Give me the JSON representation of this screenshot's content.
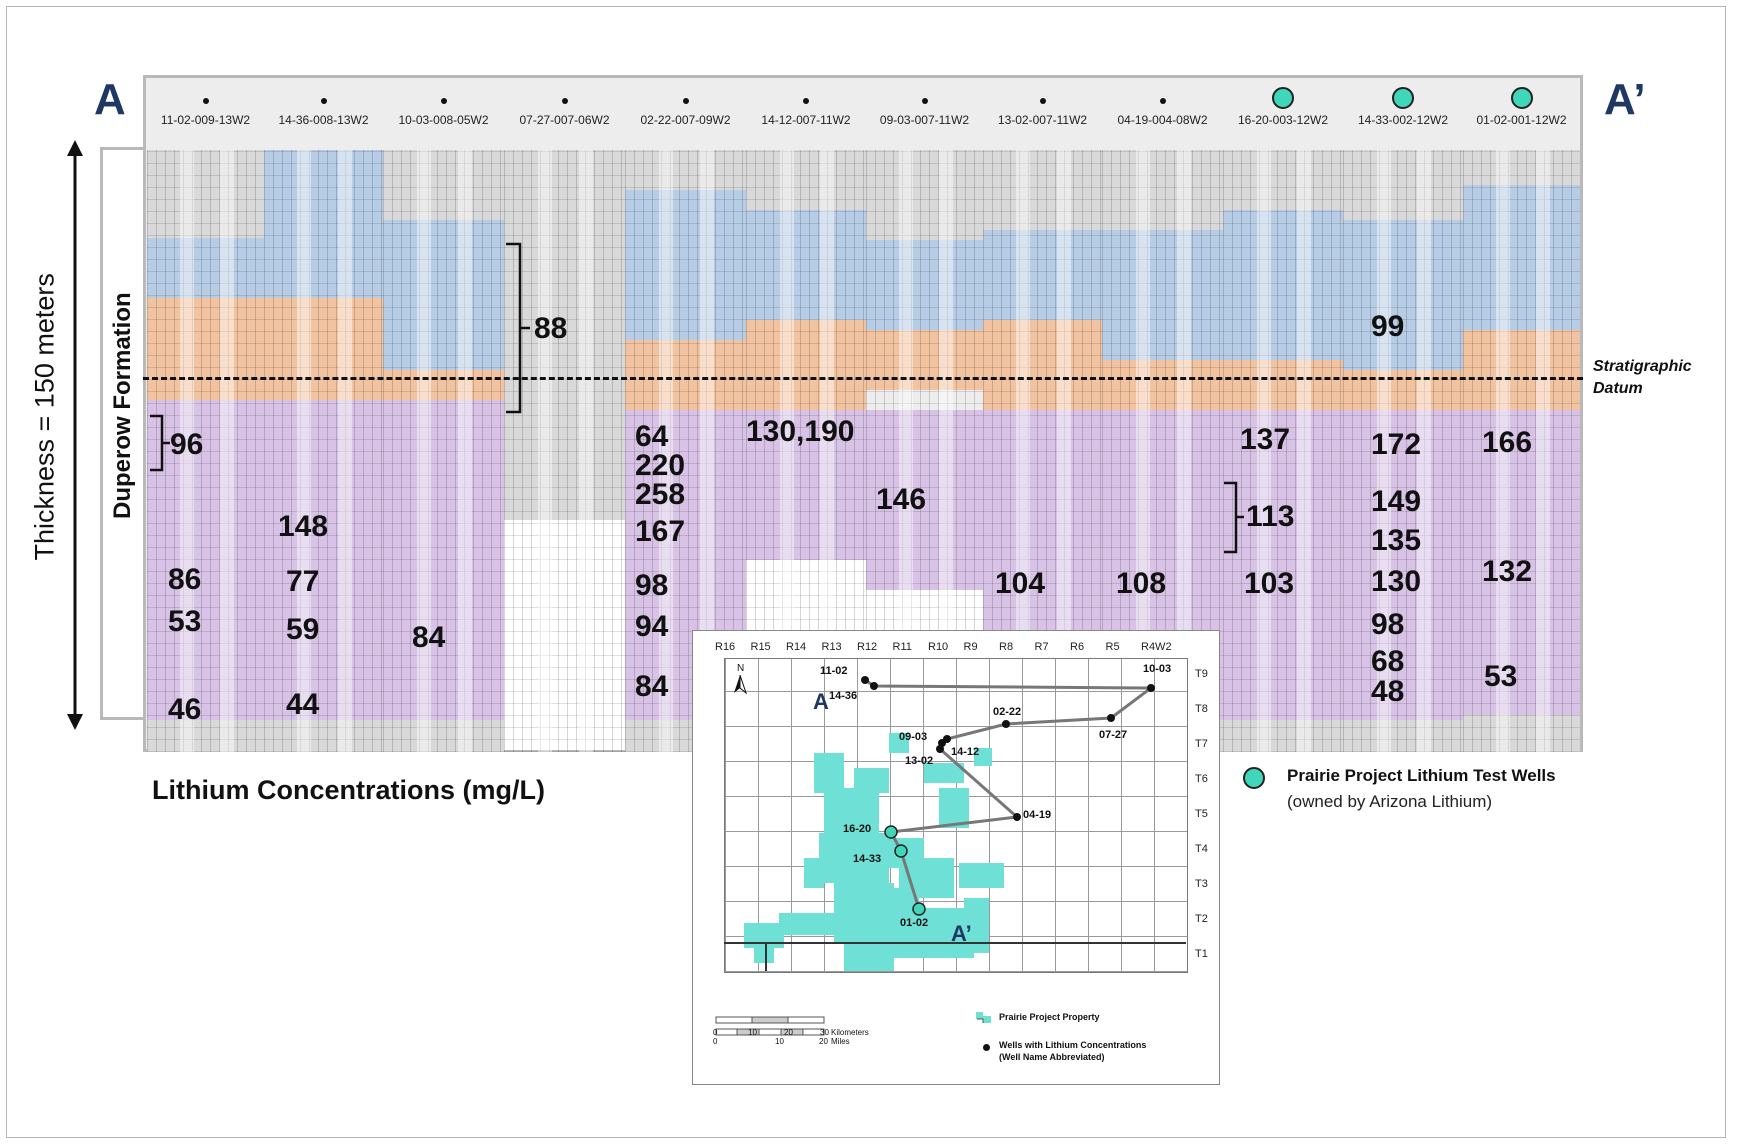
{
  "cross_section": {
    "start_label": "A",
    "end_label": "A’",
    "thickness_label": "Thickness = 150 meters",
    "formation_label": "Duperow Formation",
    "datum_label": "Stratigraphic Datum",
    "concentration_title": "Lithium Concentrations (mg/L)",
    "wells": [
      {
        "name": "11-02-009-13W2",
        "marker": "dot"
      },
      {
        "name": "14-36-008-13W2",
        "marker": "dot"
      },
      {
        "name": "10-03-008-05W2",
        "marker": "dot"
      },
      {
        "name": "07-27-007-06W2",
        "marker": "dot"
      },
      {
        "name": "02-22-007-09W2",
        "marker": "dot"
      },
      {
        "name": "14-12-007-11W2",
        "marker": "dot"
      },
      {
        "name": "09-03-007-11W2",
        "marker": "dot"
      },
      {
        "name": "13-02-007-11W2",
        "marker": "dot"
      },
      {
        "name": "04-19-004-08W2",
        "marker": "dot"
      },
      {
        "name": "16-20-003-12W2",
        "marker": "test-well"
      },
      {
        "name": "14-33-002-12W2",
        "marker": "test-well"
      },
      {
        "name": "01-02-001-12W2",
        "marker": "test-well"
      }
    ],
    "concentrations": {
      "c11_02": [
        "96",
        "86",
        "53",
        "46"
      ],
      "c14_36": [
        "148",
        "77",
        "59",
        "44"
      ],
      "c10_03": [
        "84"
      ],
      "c07_27": [
        "88"
      ],
      "c02_22": [
        "64",
        "220",
        "258",
        "167",
        "98",
        "94",
        "84"
      ],
      "c14_12": [
        "130,190"
      ],
      "c09_03": [
        "146"
      ],
      "c13_02": [
        "104"
      ],
      "c04_19": [
        "108"
      ],
      "c16_20": [
        "137",
        "113",
        "103"
      ],
      "c14_33": [
        "99",
        "172",
        "149",
        "135",
        "130",
        "98",
        "68",
        "48"
      ],
      "c01_02": [
        "166",
        "132",
        "53"
      ]
    }
  },
  "legend": {
    "test_wells_title": "Prairie Project Lithium Test Wells",
    "test_wells_sub": "(owned by Arizona Lithium)"
  },
  "map": {
    "ranges": [
      "R16",
      "R15",
      "R14",
      "R13",
      "R12",
      "R11",
      "R10",
      "R9",
      "R8",
      "R7",
      "R6",
      "R5",
      "R4W2"
    ],
    "townships": [
      "T9",
      "T8",
      "T7",
      "T6",
      "T5",
      "T4",
      "T3",
      "T2",
      "T1"
    ],
    "north": "N",
    "a_label": "A",
    "a_prime_label": "A’",
    "wells": [
      "11-02",
      "14-36",
      "10-03",
      "02-22",
      "07-27",
      "09-03",
      "14-12",
      "13-02",
      "04-19",
      "16-20",
      "14-33",
      "01-02"
    ],
    "scale_km_ticks": [
      "0",
      "10",
      "20",
      "30"
    ],
    "scale_km_unit": "Kilometers",
    "scale_mi_ticks": [
      "0",
      "10",
      "20"
    ],
    "scale_mi_unit": "Miles",
    "legend_property": "Prairie Project Property",
    "legend_wells": "Wells with Lithium Concentrations",
    "legend_wells_sub": "(Well Name Abbreviated)"
  },
  "colors": {
    "blue_unit": "#b7cde6",
    "orange_unit": "#f2c3a0",
    "purple_unit": "#d8c3e6",
    "grey_unit": "#d9d9d9",
    "test_well": "#3fd6b9",
    "title_navy": "#1f3863"
  }
}
